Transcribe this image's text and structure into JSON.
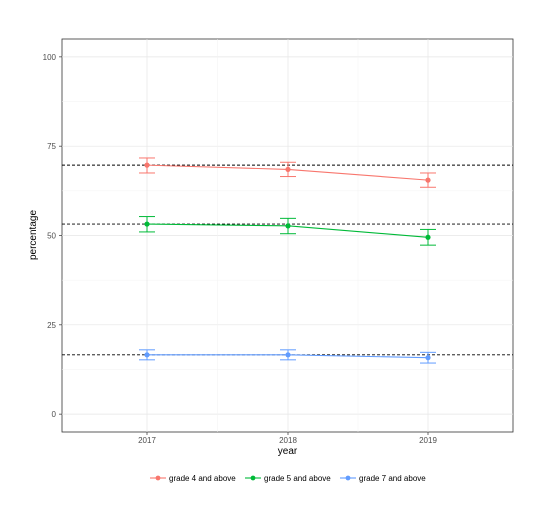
{
  "chart_data": {
    "type": "line",
    "xlabel": "year",
    "ylabel": "percentage",
    "x": [
      "2017",
      "2018",
      "2019"
    ],
    "ylim": [
      -5,
      105
    ],
    "yticks": [
      0,
      25,
      50,
      75,
      100
    ],
    "grid": true,
    "legend_position": "bottom",
    "series": [
      {
        "name": "grade 4 and above",
        "color": "#F8766D",
        "values": [
          69.7,
          68.5,
          65.5
        ],
        "lower": [
          67.5,
          66.5,
          63.5
        ],
        "upper": [
          71.7,
          70.5,
          67.5
        ]
      },
      {
        "name": "grade 5 and above",
        "color": "#00BA38",
        "values": [
          53.2,
          52.7,
          49.5
        ],
        "lower": [
          51.0,
          50.5,
          47.3
        ],
        "upper": [
          55.3,
          54.8,
          51.7
        ]
      },
      {
        "name": "grade 7 and above",
        "color": "#619CFF",
        "values": [
          16.6,
          16.6,
          15.8
        ],
        "lower": [
          15.2,
          15.2,
          14.3
        ],
        "upper": [
          18.0,
          18.0,
          17.3
        ]
      }
    ],
    "reference_lines": [
      {
        "y": 69.7,
        "style": "dashed",
        "color": "#000000"
      },
      {
        "y": 53.2,
        "style": "dashed",
        "color": "#000000"
      },
      {
        "y": 16.6,
        "style": "dashed",
        "color": "#000000"
      }
    ]
  }
}
